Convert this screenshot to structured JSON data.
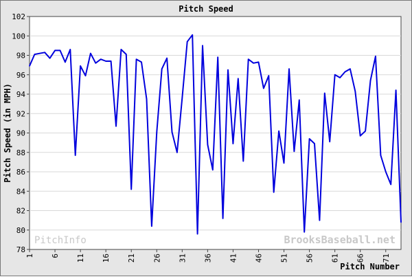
{
  "chart_data": {
    "type": "line",
    "title": "Pitch Speed",
    "xlabel": "Pitch Number",
    "ylabel": "Pitch Speed (in MPH)",
    "x_ticks": [
      1,
      6,
      11,
      16,
      21,
      26,
      31,
      36,
      41,
      46,
      51,
      56,
      61,
      66,
      71
    ],
    "y_ticks": [
      78,
      80,
      82,
      84,
      86,
      88,
      90,
      92,
      94,
      96,
      98,
      100,
      102
    ],
    "xlim": [
      1,
      74
    ],
    "ylim": [
      78,
      102
    ],
    "grid": true,
    "series": [
      {
        "color": "#0000dd",
        "x": [
          1,
          2,
          3,
          4,
          5,
          6,
          7,
          8,
          9,
          10,
          11,
          12,
          13,
          14,
          15,
          16,
          17,
          18,
          19,
          20,
          21,
          22,
          23,
          24,
          25,
          26,
          27,
          28,
          29,
          30,
          31,
          32,
          33,
          34,
          35,
          36,
          37,
          38,
          39,
          40,
          41,
          42,
          43,
          44,
          45,
          46,
          47,
          48,
          49,
          50,
          51,
          52,
          53,
          54,
          55,
          56,
          57,
          58,
          59,
          60,
          61,
          62,
          63,
          64,
          65,
          66,
          67,
          68,
          69,
          70,
          71,
          72,
          73,
          74
        ],
        "values": [
          96.9,
          98.1,
          98.2,
          98.3,
          97.7,
          98.5,
          98.5,
          97.3,
          98.6,
          87.7,
          96.9,
          95.9,
          98.2,
          97.2,
          97.6,
          97.4,
          97.4,
          90.7,
          98.6,
          98.1,
          84.2,
          97.6,
          97.3,
          93.5,
          80.4,
          90.1,
          96.6,
          97.7,
          90.1,
          88.0,
          93.6,
          99.4,
          100.1,
          79.6,
          99.0,
          88.8,
          86.2,
          97.8,
          81.2,
          96.5,
          88.9,
          95.6,
          87.1,
          97.6,
          97.2,
          97.3,
          94.6,
          95.9,
          83.9,
          90.2,
          86.9,
          96.6,
          88.1,
          93.4,
          79.8,
          89.4,
          88.9,
          81.0,
          94.1,
          89.1,
          96.0,
          95.7,
          96.3,
          96.6,
          94.3,
          89.7,
          90.2,
          95.4,
          97.9,
          87.7,
          86.0,
          84.7,
          94.4,
          80.8
        ]
      }
    ]
  },
  "watermarks": {
    "left": "PitchInfo",
    "right": "BrooksBaseball.net"
  },
  "colors": {
    "line": "#0000dd",
    "frame_bg": "#e6e6e6",
    "plot_bg": "#ffffff",
    "grid": "#d8d8d8",
    "watermark": "#c8c8c8"
  }
}
